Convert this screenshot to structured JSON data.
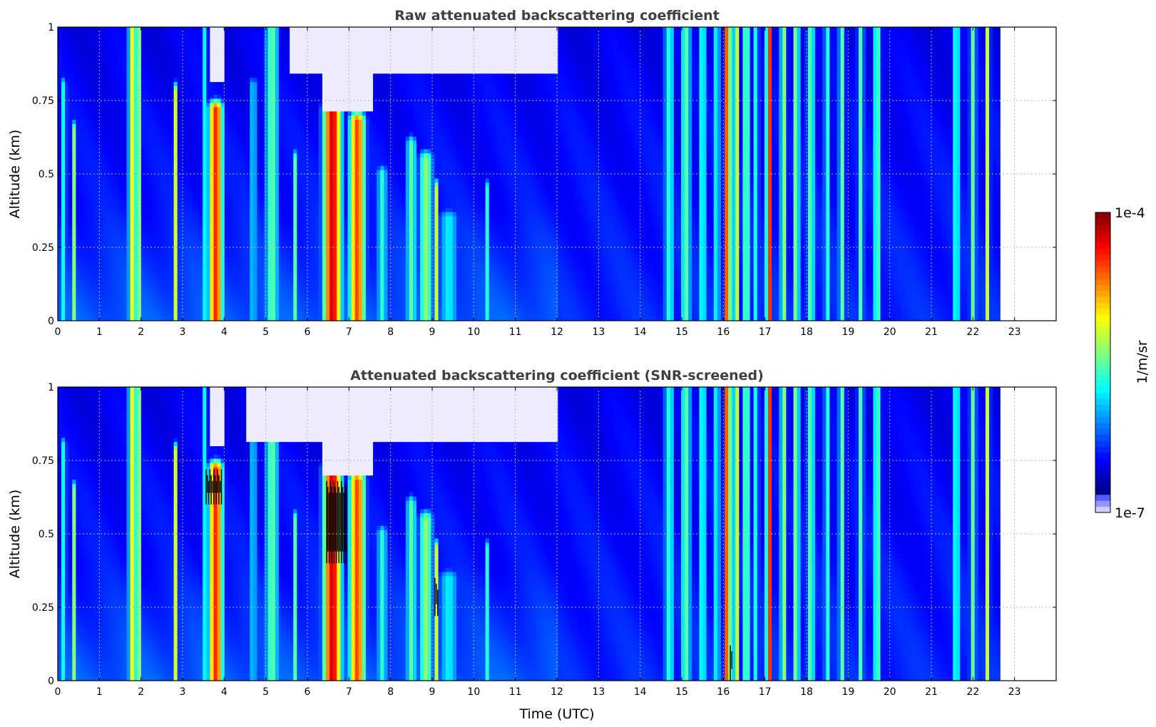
{
  "chart_data": [
    {
      "type": "heatmap",
      "title": "Raw attenuated backscattering coefficient",
      "xlabel": "",
      "ylabel": "Altitude (km)",
      "xlim": [
        0,
        24
      ],
      "ylim": [
        0,
        1
      ],
      "x_ticks": [
        "0",
        "1",
        "2",
        "3",
        "4",
        "5",
        "6",
        "7",
        "8",
        "9",
        "10",
        "11",
        "12",
        "13",
        "14",
        "15",
        "16",
        "17",
        "18",
        "19",
        "20",
        "21",
        "22",
        "23"
      ],
      "y_ticks": [
        "0",
        "0.25",
        "0.5",
        "0.75",
        "1"
      ],
      "y_tick_values": [
        0,
        0.25,
        0.5,
        0.75,
        1
      ],
      "grid": true,
      "data_extent_hours": [
        0,
        22.65
      ],
      "features": [
        {
          "x": 0.15,
          "top": 0.8,
          "w": 0.08,
          "v": 0.45
        },
        {
          "x": 0.4,
          "top": 0.65,
          "w": 0.05,
          "v": 0.55
        },
        {
          "x": 1.8,
          "top": 1.0,
          "w": 0.12,
          "v": 0.65
        },
        {
          "x": 1.95,
          "top": 1.0,
          "w": 0.06,
          "v": 0.55
        },
        {
          "x": 2.85,
          "top": 0.78,
          "w": 0.05,
          "v": 0.7
        },
        {
          "x": 3.55,
          "top": 1.0,
          "w": 0.07,
          "v": 0.45
        },
        {
          "x": 3.8,
          "top": 0.72,
          "w": 0.2,
          "v": 0.85
        },
        {
          "x": 4.7,
          "top": 0.8,
          "w": 0.1,
          "v": 0.4
        },
        {
          "x": 5.15,
          "top": 1.0,
          "w": 0.2,
          "v": 0.5
        },
        {
          "x": 5.7,
          "top": 0.55,
          "w": 0.05,
          "v": 0.5
        },
        {
          "x": 6.6,
          "top": 0.72,
          "w": 0.25,
          "v": 0.92
        },
        {
          "x": 7.2,
          "top": 0.68,
          "w": 0.22,
          "v": 0.82
        },
        {
          "x": 7.8,
          "top": 0.5,
          "w": 0.15,
          "v": 0.45
        },
        {
          "x": 8.5,
          "top": 0.6,
          "w": 0.15,
          "v": 0.5
        },
        {
          "x": 8.85,
          "top": 0.55,
          "w": 0.2,
          "v": 0.55
        },
        {
          "x": 9.1,
          "top": 0.45,
          "w": 0.06,
          "v": 0.6
        },
        {
          "x": 9.4,
          "top": 0.35,
          "w": 0.3,
          "v": 0.4
        },
        {
          "x": 10.3,
          "top": 0.45,
          "w": 0.05,
          "v": 0.55
        },
        {
          "x": 14.7,
          "top": 1.0,
          "w": 0.15,
          "v": 0.45
        },
        {
          "x": 15.1,
          "top": 1.0,
          "w": 0.15,
          "v": 0.5
        },
        {
          "x": 15.5,
          "top": 1.0,
          "w": 0.12,
          "v": 0.45
        },
        {
          "x": 15.85,
          "top": 1.0,
          "w": 0.06,
          "v": 0.6
        },
        {
          "x": 16.1,
          "top": 1.0,
          "w": 0.08,
          "v": 0.9
        },
        {
          "x": 16.3,
          "top": 1.0,
          "w": 0.06,
          "v": 0.82
        },
        {
          "x": 16.55,
          "top": 1.0,
          "w": 0.1,
          "v": 0.55
        },
        {
          "x": 16.8,
          "top": 1.0,
          "w": 0.06,
          "v": 0.55
        },
        {
          "x": 17.1,
          "top": 1.0,
          "w": 0.08,
          "v": 0.88
        },
        {
          "x": 17.45,
          "top": 1.0,
          "w": 0.1,
          "v": 0.55
        },
        {
          "x": 17.75,
          "top": 1.0,
          "w": 0.1,
          "v": 0.55
        },
        {
          "x": 18.1,
          "top": 1.0,
          "w": 0.12,
          "v": 0.5
        },
        {
          "x": 18.5,
          "top": 1.0,
          "w": 0.1,
          "v": 0.45
        },
        {
          "x": 18.85,
          "top": 1.0,
          "w": 0.1,
          "v": 0.5
        },
        {
          "x": 19.3,
          "top": 1.0,
          "w": 0.1,
          "v": 0.48
        },
        {
          "x": 19.7,
          "top": 1.0,
          "w": 0.12,
          "v": 0.5
        },
        {
          "x": 21.6,
          "top": 1.0,
          "w": 0.12,
          "v": 0.45
        },
        {
          "x": 22.0,
          "top": 1.0,
          "w": 0.1,
          "v": 0.5
        },
        {
          "x": 22.35,
          "top": 1.0,
          "w": 0.08,
          "v": 0.6
        }
      ],
      "white_regions": [
        {
          "x0": 3.7,
          "x1": 4.0,
          "y0": 0.82,
          "y1": 1.0
        },
        {
          "x0": 6.4,
          "x1": 7.6,
          "y0": 0.72,
          "y1": 1.0
        },
        {
          "x0": 5.6,
          "x1": 12.0,
          "y0": 0.85,
          "y1": 1.0
        }
      ]
    },
    {
      "type": "heatmap",
      "title": "Attenuated backscattering coefficient (SNR-screened)",
      "xlabel": "Time (UTC)",
      "ylabel": "Altitude (km)",
      "xlim": [
        0,
        24
      ],
      "ylim": [
        0,
        1
      ],
      "x_ticks": [
        "0",
        "1",
        "2",
        "3",
        "4",
        "5",
        "6",
        "7",
        "8",
        "9",
        "10",
        "11",
        "12",
        "13",
        "14",
        "15",
        "16",
        "17",
        "18",
        "19",
        "20",
        "21",
        "22",
        "23"
      ],
      "y_ticks": [
        "0",
        "0.25",
        "0.5",
        "0.75",
        "1"
      ],
      "y_tick_values": [
        0,
        0.25,
        0.5,
        0.75,
        1
      ],
      "grid": true,
      "data_extent_hours": [
        0,
        22.65
      ],
      "features": [
        {
          "x": 0.15,
          "top": 0.8,
          "w": 0.08,
          "v": 0.45
        },
        {
          "x": 0.4,
          "top": 0.65,
          "w": 0.05,
          "v": 0.55
        },
        {
          "x": 1.8,
          "top": 1.0,
          "w": 0.12,
          "v": 0.65
        },
        {
          "x": 1.95,
          "top": 1.0,
          "w": 0.06,
          "v": 0.55
        },
        {
          "x": 2.85,
          "top": 0.78,
          "w": 0.05,
          "v": 0.7
        },
        {
          "x": 3.55,
          "top": 1.0,
          "w": 0.07,
          "v": 0.45
        },
        {
          "x": 3.8,
          "top": 0.72,
          "w": 0.2,
          "v": 0.85
        },
        {
          "x": 4.7,
          "top": 0.8,
          "w": 0.1,
          "v": 0.4
        },
        {
          "x": 5.15,
          "top": 1.0,
          "w": 0.2,
          "v": 0.5
        },
        {
          "x": 5.7,
          "top": 0.55,
          "w": 0.05,
          "v": 0.5
        },
        {
          "x": 6.6,
          "top": 0.72,
          "w": 0.25,
          "v": 0.92
        },
        {
          "x": 7.2,
          "top": 0.68,
          "w": 0.22,
          "v": 0.82
        },
        {
          "x": 7.8,
          "top": 0.5,
          "w": 0.15,
          "v": 0.45
        },
        {
          "x": 8.5,
          "top": 0.6,
          "w": 0.15,
          "v": 0.5
        },
        {
          "x": 8.85,
          "top": 0.55,
          "w": 0.2,
          "v": 0.55
        },
        {
          "x": 9.1,
          "top": 0.45,
          "w": 0.06,
          "v": 0.6
        },
        {
          "x": 9.4,
          "top": 0.35,
          "w": 0.3,
          "v": 0.4
        },
        {
          "x": 10.3,
          "top": 0.45,
          "w": 0.05,
          "v": 0.55
        },
        {
          "x": 14.7,
          "top": 1.0,
          "w": 0.15,
          "v": 0.45
        },
        {
          "x": 15.1,
          "top": 1.0,
          "w": 0.15,
          "v": 0.5
        },
        {
          "x": 15.5,
          "top": 1.0,
          "w": 0.12,
          "v": 0.45
        },
        {
          "x": 15.85,
          "top": 1.0,
          "w": 0.06,
          "v": 0.6
        },
        {
          "x": 16.1,
          "top": 1.0,
          "w": 0.08,
          "v": 0.9
        },
        {
          "x": 16.3,
          "top": 1.0,
          "w": 0.06,
          "v": 0.82
        },
        {
          "x": 16.55,
          "top": 1.0,
          "w": 0.1,
          "v": 0.55
        },
        {
          "x": 16.8,
          "top": 1.0,
          "w": 0.06,
          "v": 0.55
        },
        {
          "x": 17.1,
          "top": 1.0,
          "w": 0.08,
          "v": 0.88
        },
        {
          "x": 17.45,
          "top": 1.0,
          "w": 0.1,
          "v": 0.55
        },
        {
          "x": 17.75,
          "top": 1.0,
          "w": 0.1,
          "v": 0.55
        },
        {
          "x": 18.1,
          "top": 1.0,
          "w": 0.12,
          "v": 0.5
        },
        {
          "x": 18.5,
          "top": 1.0,
          "w": 0.1,
          "v": 0.45
        },
        {
          "x": 18.85,
          "top": 1.0,
          "w": 0.1,
          "v": 0.5
        },
        {
          "x": 19.3,
          "top": 1.0,
          "w": 0.1,
          "v": 0.48
        },
        {
          "x": 19.7,
          "top": 1.0,
          "w": 0.12,
          "v": 0.5
        },
        {
          "x": 21.6,
          "top": 1.0,
          "w": 0.12,
          "v": 0.45
        },
        {
          "x": 22.0,
          "top": 1.0,
          "w": 0.1,
          "v": 0.5
        },
        {
          "x": 22.35,
          "top": 1.0,
          "w": 0.08,
          "v": 0.6
        }
      ],
      "white_regions": [
        {
          "x0": 3.7,
          "x1": 4.0,
          "y0": 0.8,
          "y1": 1.0
        },
        {
          "x0": 6.4,
          "x1": 7.6,
          "y0": 0.7,
          "y1": 1.0
        },
        {
          "x0": 4.5,
          "x1": 12.0,
          "y0": 0.82,
          "y1": 1.0
        }
      ],
      "black_streaks": [
        {
          "x0": 3.55,
          "x1": 3.95,
          "y0": 0.6,
          "y1": 0.72
        },
        {
          "x0": 6.45,
          "x1": 6.95,
          "y0": 0.4,
          "y1": 0.68
        },
        {
          "x0": 9.05,
          "x1": 9.15,
          "y0": 0.22,
          "y1": 0.35
        },
        {
          "x0": 16.15,
          "x1": 16.22,
          "y0": 0.0,
          "y1": 0.12
        }
      ]
    }
  ],
  "colorbar": {
    "label": "1/m/sr",
    "max_label": "1e-4",
    "min_label": "1e-7",
    "scale": "log",
    "range": [
      1e-07,
      0.0001
    ],
    "colormap": "jet-with-white-bottom",
    "levels": 50
  }
}
